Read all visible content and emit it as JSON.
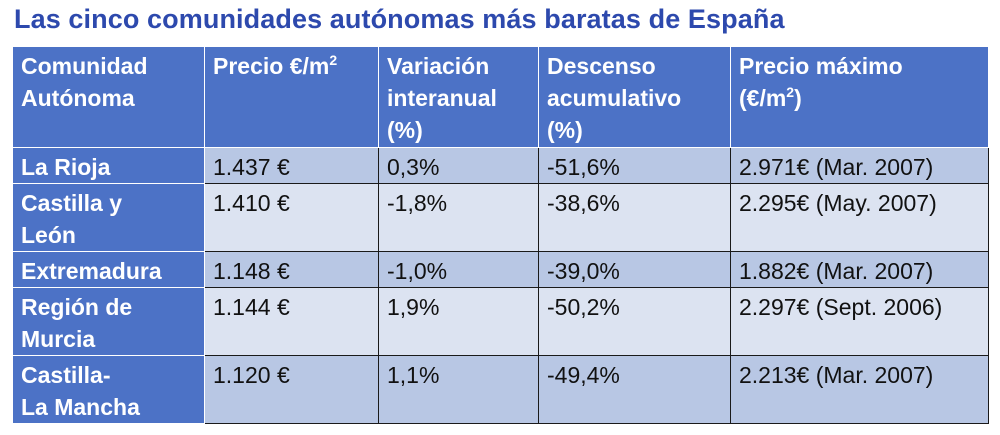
{
  "title": "Las cinco comunidades autónomas más baratas de España",
  "table": {
    "headers": [
      {
        "main": "Comunidad\nAutónoma",
        "sup": "",
        "tail": ""
      },
      {
        "main": "Precio €/m",
        "sup": "2",
        "tail": ""
      },
      {
        "main": "Variación\ninteranual\n(%)",
        "sup": "",
        "tail": ""
      },
      {
        "main": "Descenso\nacumulativo\n(%)",
        "sup": "",
        "tail": ""
      },
      {
        "main": "Precio máximo\n (€/m",
        "sup": "2",
        "tail": ")"
      }
    ],
    "rows": [
      {
        "region": "La Rioja",
        "price": "1.437 €",
        "variation": "0,3%",
        "decline": "-51,6%",
        "max": "2.971€ (Mar. 2007)"
      },
      {
        "region": "Castilla y\n León",
        "price": "1.410 €",
        "variation": "-1,8%",
        "decline": "-38,6%",
        "max": "2.295€ (May. 2007)"
      },
      {
        "region": "Extremadura",
        "price": "1.148 €",
        "variation": "-1,0%",
        "decline": "-39,0%",
        "max": "1.882€ (Mar. 2007)"
      },
      {
        "region": "Región de\nMurcia",
        "price": "1.144 €",
        "variation": "1,9%",
        "decline": "-50,2%",
        "max": "2.297€ (Sept. 2006)"
      },
      {
        "region": "Castilla-\nLa Mancha",
        "price": "1.120 €",
        "variation": "1,1%",
        "decline": "-49,4%",
        "max": "2.213€ (Mar. 2007)"
      }
    ]
  },
  "colors": {
    "title": "#2d49ad",
    "header_bg": "#4c72c6",
    "row_odd": "#b8c7e4",
    "row_even": "#dce3f1"
  }
}
